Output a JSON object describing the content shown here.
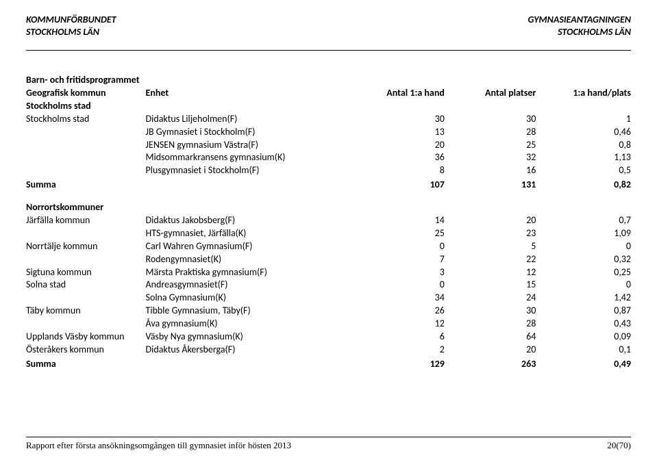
{
  "header": {
    "left_line1": "KOMMUNFÖRBUNDET",
    "left_line2": "STOCKHOLMS LÄN",
    "right_line1": "GYMNASIEANTAGNINGEN",
    "right_line2": "STOCKHOLMS LÄN"
  },
  "section_title": "Barn- och fritidsprogrammet",
  "columns": {
    "kommun": "Geografisk kommun",
    "enhet": "Enhet",
    "n1": "Antal 1:a hand",
    "n2": "Antal platser",
    "n3": "1:a hand/plats"
  },
  "group1": {
    "heading": "Stockholms stad",
    "rows": [
      {
        "kommun": "Stockholms stad",
        "enhet": "Didaktus Liljeholmen(F)",
        "n1": "30",
        "n2": "30",
        "n3": "1"
      },
      {
        "kommun": "",
        "enhet": "JB Gymnasiet i Stockholm(F)",
        "n1": "13",
        "n2": "28",
        "n3": "0,46"
      },
      {
        "kommun": "",
        "enhet": "JENSEN gymnasium Västra(F)",
        "n1": "20",
        "n2": "25",
        "n3": "0,8"
      },
      {
        "kommun": "",
        "enhet": "Midsommarkransens gymnasium(K)",
        "n1": "36",
        "n2": "32",
        "n3": "1,13"
      },
      {
        "kommun": "",
        "enhet": "Plusgymnasiet i Stockholm(F)",
        "n1": "8",
        "n2": "16",
        "n3": "0,5"
      }
    ],
    "summa": {
      "label": "Summa",
      "n1": "107",
      "n2": "131",
      "n3": "0,82"
    }
  },
  "group2": {
    "heading": "Norrortskommuner",
    "rows": [
      {
        "kommun": "Järfälla kommun",
        "enhet": "Didaktus Jakobsberg(F)",
        "n1": "14",
        "n2": "20",
        "n3": "0,7"
      },
      {
        "kommun": "",
        "enhet": "HTS-gymnasiet, Järfälla(K)",
        "n1": "25",
        "n2": "23",
        "n3": "1,09"
      },
      {
        "kommun": "Norrtälje kommun",
        "enhet": "Carl Wahren Gymnasium(F)",
        "n1": "0",
        "n2": "5",
        "n3": "0"
      },
      {
        "kommun": "",
        "enhet": "Rodengymnasiet(K)",
        "n1": "7",
        "n2": "22",
        "n3": "0,32"
      },
      {
        "kommun": "Sigtuna kommun",
        "enhet": "Märsta Praktiska gymnasium(F)",
        "n1": "3",
        "n2": "12",
        "n3": "0,25"
      },
      {
        "kommun": "Solna stad",
        "enhet": "Andreasgymnasiet(F)",
        "n1": "0",
        "n2": "15",
        "n3": "0"
      },
      {
        "kommun": "",
        "enhet": "Solna Gymnasium(K)",
        "n1": "34",
        "n2": "24",
        "n3": "1,42"
      },
      {
        "kommun": "Täby kommun",
        "enhet": "Tibble Gymnasium, Täby(F)",
        "n1": "26",
        "n2": "30",
        "n3": "0,87"
      },
      {
        "kommun": "",
        "enhet": "Åva gymnasium(K)",
        "n1": "12",
        "n2": "28",
        "n3": "0,43"
      },
      {
        "kommun": "Upplands Väsby kommun",
        "enhet": "Väsby Nya gymnasium(K)",
        "n1": "6",
        "n2": "64",
        "n3": "0,09"
      },
      {
        "kommun": "Österåkers kommun",
        "enhet": "Didaktus Åkersberga(F)",
        "n1": "2",
        "n2": "20",
        "n3": "0,1"
      }
    ],
    "summa": {
      "label": "Summa",
      "n1": "129",
      "n2": "263",
      "n3": "0,49"
    }
  },
  "footer": {
    "text": "Rapport efter första ansökningsomgången till gymnasiet inför hösten 2013",
    "page": "20(70)"
  }
}
